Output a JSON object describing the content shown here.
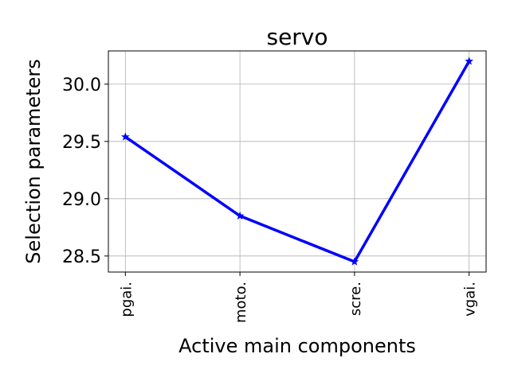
{
  "chart_data": {
    "type": "line",
    "title": "servo",
    "xlabel": "Active main components",
    "ylabel": "Selection parameters",
    "categories": [
      "pgai.",
      "moto.",
      "scre.",
      "vgai."
    ],
    "series": [
      {
        "values": [
          29.54,
          28.85,
          28.45,
          30.2
        ],
        "color": "#0000ff",
        "marker": "star"
      }
    ],
    "yticks": [
      28.5,
      29.0,
      29.5,
      30.0
    ],
    "ytick_labels": [
      "28.5",
      "29.0",
      "29.5",
      "30.0"
    ],
    "ylim": [
      28.36,
      30.29
    ],
    "grid": true,
    "legend": "none"
  }
}
